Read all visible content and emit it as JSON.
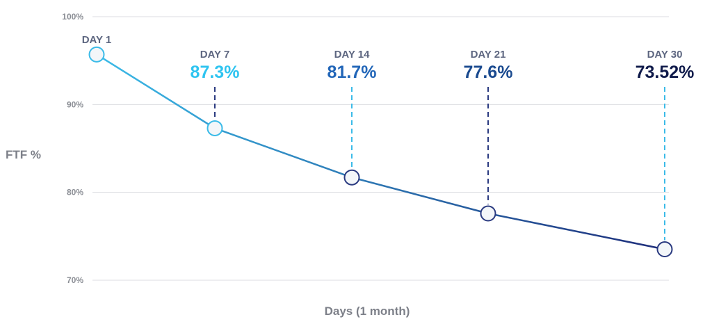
{
  "chart_data": {
    "type": "line",
    "title": "",
    "xlabel": "Days (1 month)",
    "ylabel": "FTF %",
    "ylim": [
      70,
      100
    ],
    "yticks": [
      100,
      90,
      80,
      70
    ],
    "ytick_labels": [
      "100%",
      "90%",
      "80%",
      "70%"
    ],
    "grid": true,
    "points": [
      {
        "day_label": "DAY 1",
        "value": 95.7,
        "value_label": "",
        "color": "#2ec4f0"
      },
      {
        "day_label": "DAY 7",
        "value": 87.3,
        "value_label": "87.3%",
        "color": "#2ec4f0"
      },
      {
        "day_label": "DAY 14",
        "value": 81.7,
        "value_label": "81.7%",
        "color": "#2266b8"
      },
      {
        "day_label": "DAY 21",
        "value": 77.6,
        "value_label": "77.6%",
        "color": "#1a4a8f"
      },
      {
        "day_label": "DAY 30",
        "value": 73.52,
        "value_label": "73.52%",
        "color": "#0f1a4a"
      }
    ],
    "line_gradient": [
      "#3bbbe8",
      "#1e2d7a"
    ]
  }
}
